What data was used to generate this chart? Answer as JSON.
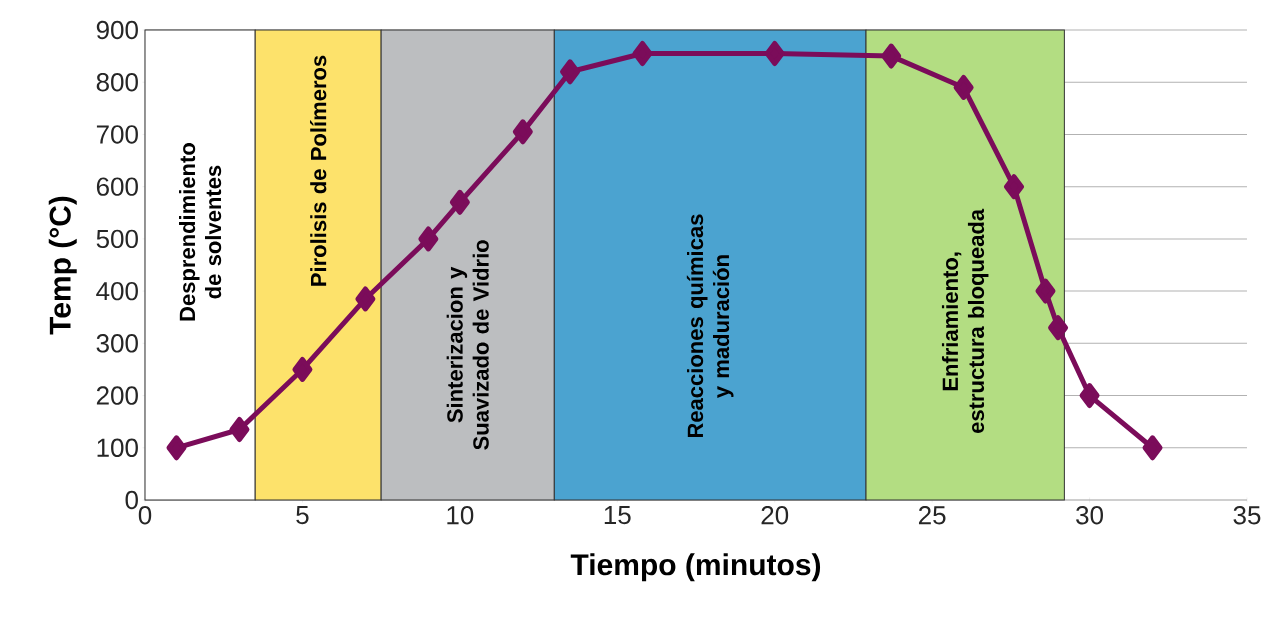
{
  "chart_data": {
    "type": "line",
    "xlabel": "Tiempo (minutos)",
    "ylabel": "Temp (°C)",
    "xlim": [
      0,
      35
    ],
    "ylim": [
      0,
      900
    ],
    "xticks": [
      0,
      5,
      10,
      15,
      20,
      25,
      30,
      35
    ],
    "yticks": [
      0,
      100,
      200,
      300,
      400,
      500,
      600,
      700,
      800,
      900
    ],
    "grid": "y",
    "marker": "diamond",
    "line_style": "solid",
    "x": [
      1,
      3,
      5,
      7,
      9,
      10,
      12,
      13.5,
      15.8,
      20,
      23.7,
      26,
      27.6,
      28.6,
      29,
      30,
      32
    ],
    "series": [
      {
        "color": "#7b0c5a",
        "values": [
          100,
          135,
          250,
          385,
          500,
          570,
          705,
          820,
          855,
          855,
          850,
          790,
          600,
          400,
          330,
          200,
          100
        ]
      }
    ],
    "bands": [
      {
        "axis": "x",
        "from": 0,
        "to": 3.5,
        "color": "#ffffff",
        "label": "Desprendimiento de solventes"
      },
      {
        "axis": "x",
        "from": 3.5,
        "to": 7.5,
        "color": "#fde26b",
        "label": "Pirolisis de Polímeros"
      },
      {
        "axis": "x",
        "from": 7.5,
        "to": 13,
        "color": "#bcbec0",
        "label": "Sinterizacion y Suavizado de Vidrio"
      },
      {
        "axis": "x",
        "from": 13,
        "to": 22.9,
        "color": "#4ba3d0",
        "label": "Reacciones químicas y maduración"
      },
      {
        "axis": "x",
        "from": 22.9,
        "to": 29.2,
        "color": "#b3dd82",
        "label": "Enfriamiento, estructura bloqueada"
      }
    ]
  }
}
